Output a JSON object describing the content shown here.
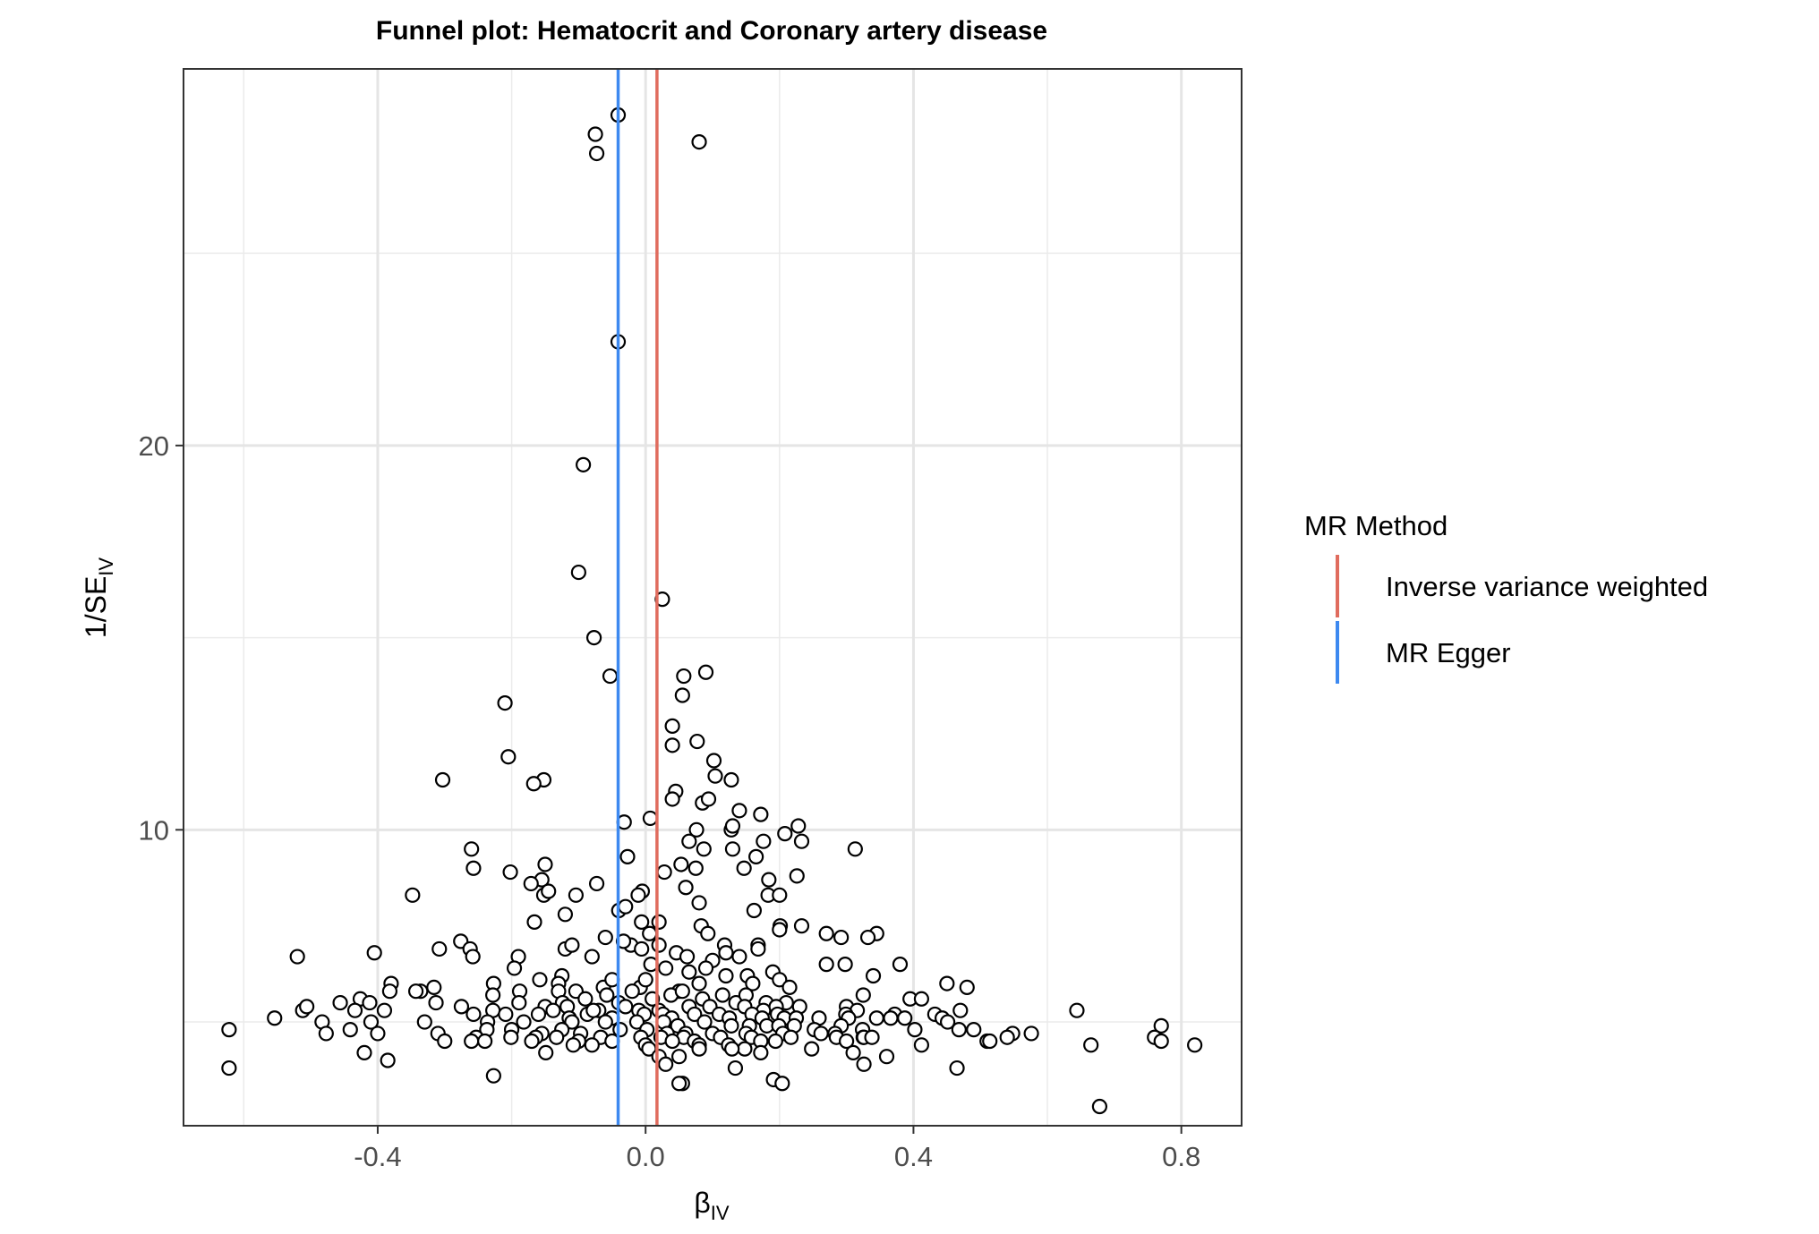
{
  "chart_data": {
    "type": "scatter",
    "title": "Funnel plot: Hematocrit and Coronary artery disease",
    "xlabel": "β",
    "xlabel_sub": "IV",
    "ylabel": "1/SE",
    "ylabel_sub": "IV",
    "xlim": [
      -0.69,
      0.89
    ],
    "ylim": [
      2.3,
      29.8
    ],
    "x_ticks": [
      -0.4,
      0.0,
      0.4,
      0.8
    ],
    "x_tick_labels": [
      "-0.4",
      "0.0",
      "0.4",
      "0.8"
    ],
    "y_ticks": [
      10,
      20
    ],
    "y_tick_labels": [
      "10",
      "20"
    ],
    "grid": true,
    "legend": {
      "title": "MR Method",
      "placement": "right",
      "entries": [
        {
          "label": "Inverse variance weighted",
          "color": "#E06C5E"
        },
        {
          "label": "MR Egger",
          "color": "#3D89F0"
        }
      ]
    },
    "vlines": [
      {
        "name": "Inverse variance weighted",
        "x": 0.017,
        "color": "#E06C5E"
      },
      {
        "name": "MR Egger",
        "x": -0.041,
        "color": "#3D89F0"
      }
    ],
    "points": [
      [
        -0.041,
        28.6
      ],
      [
        -0.075,
        28.1
      ],
      [
        -0.073,
        27.6
      ],
      [
        0.08,
        27.9
      ],
      [
        -0.041,
        22.7
      ],
      [
        -0.093,
        19.5
      ],
      [
        -0.1,
        16.7
      ],
      [
        0.025,
        16.0
      ],
      [
        -0.077,
        15.0
      ],
      [
        -0.053,
        14.0
      ],
      [
        0.057,
        14.0
      ],
      [
        0.09,
        14.1
      ],
      [
        0.055,
        13.5
      ],
      [
        -0.21,
        13.3
      ],
      [
        0.04,
        12.7
      ],
      [
        0.04,
        12.2
      ],
      [
        0.077,
        12.3
      ],
      [
        -0.205,
        11.9
      ],
      [
        0.102,
        11.8
      ],
      [
        0.104,
        11.4
      ],
      [
        0.128,
        11.3
      ],
      [
        -0.303,
        11.3
      ],
      [
        -0.152,
        11.3
      ],
      [
        -0.167,
        11.2
      ],
      [
        0.045,
        11.0
      ],
      [
        0.04,
        10.8
      ],
      [
        0.085,
        10.7
      ],
      [
        0.094,
        10.8
      ],
      [
        0.14,
        10.5
      ],
      [
        0.172,
        10.4
      ],
      [
        0.007,
        10.3
      ],
      [
        -0.032,
        10.2
      ],
      [
        0.076,
        10.0
      ],
      [
        0.128,
        10.0
      ],
      [
        0.13,
        10.1
      ],
      [
        0.228,
        10.1
      ],
      [
        0.208,
        9.9
      ],
      [
        0.233,
        9.7
      ],
      [
        0.065,
        9.7
      ],
      [
        0.087,
        9.5
      ],
      [
        0.176,
        9.7
      ],
      [
        0.13,
        9.5
      ],
      [
        0.313,
        9.5
      ],
      [
        -0.26,
        9.5
      ],
      [
        -0.15,
        9.1
      ],
      [
        -0.257,
        9.0
      ],
      [
        -0.202,
        8.9
      ],
      [
        0.053,
        9.1
      ],
      [
        0.075,
        9.0
      ],
      [
        0.028,
        8.9
      ],
      [
        0.147,
        9.0
      ],
      [
        0.165,
        9.3
      ],
      [
        -0.027,
        9.3
      ],
      [
        -0.155,
        8.7
      ],
      [
        -0.171,
        8.6
      ],
      [
        -0.073,
        8.6
      ],
      [
        0.06,
        8.5
      ],
      [
        0.184,
        8.7
      ],
      [
        0.226,
        8.8
      ],
      [
        -0.152,
        8.3
      ],
      [
        -0.145,
        8.4
      ],
      [
        -0.348,
        8.3
      ],
      [
        -0.104,
        8.3
      ],
      [
        -0.005,
        8.4
      ],
      [
        -0.011,
        8.3
      ],
      [
        0.183,
        8.3
      ],
      [
        0.2,
        8.3
      ],
      [
        0.08,
        8.1
      ],
      [
        -0.04,
        7.9
      ],
      [
        -0.03,
        8.0
      ],
      [
        -0.12,
        7.8
      ],
      [
        0.162,
        7.9
      ],
      [
        0.02,
        7.6
      ],
      [
        0.083,
        7.5
      ],
      [
        0.201,
        7.5
      ],
      [
        0.233,
        7.5
      ],
      [
        -0.166,
        7.6
      ],
      [
        -0.006,
        7.6
      ],
      [
        0.27,
        7.3
      ],
      [
        0.345,
        7.3
      ],
      [
        0.292,
        7.2
      ],
      [
        0.332,
        7.2
      ],
      [
        0.006,
        7.3
      ],
      [
        0.093,
        7.3
      ],
      [
        0.2,
        7.4
      ],
      [
        0.118,
        7.0
      ],
      [
        0.168,
        7.0
      ],
      [
        0.12,
        6.8
      ],
      [
        -0.022,
        7.0
      ],
      [
        -0.06,
        7.2
      ],
      [
        -0.006,
        6.9
      ],
      [
        -0.276,
        7.1
      ],
      [
        -0.308,
        6.9
      ],
      [
        -0.262,
        6.9
      ],
      [
        -0.405,
        6.8
      ],
      [
        -0.52,
        6.7
      ],
      [
        -0.258,
        6.7
      ],
      [
        -0.12,
        6.9
      ],
      [
        -0.11,
        7.0
      ],
      [
        -0.08,
        6.7
      ],
      [
        -0.033,
        7.1
      ],
      [
        0.02,
        7.0
      ],
      [
        0.046,
        6.8
      ],
      [
        0.062,
        6.7
      ],
      [
        0.1,
        6.6
      ],
      [
        0.14,
        6.7
      ],
      [
        0.168,
        6.9
      ],
      [
        0.38,
        6.5
      ],
      [
        0.27,
        6.5
      ],
      [
        0.298,
        6.5
      ],
      [
        -0.19,
        6.7
      ],
      [
        -0.196,
        6.4
      ],
      [
        0.008,
        6.5
      ],
      [
        0.03,
        6.4
      ],
      [
        0.065,
        6.3
      ],
      [
        0.09,
        6.4
      ],
      [
        0.12,
        6.2
      ],
      [
        0.152,
        6.2
      ],
      [
        0.19,
        6.3
      ],
      [
        0.2,
        6.1
      ],
      [
        0.34,
        6.2
      ],
      [
        -0.38,
        6.0
      ],
      [
        -0.316,
        5.9
      ],
      [
        -0.227,
        6.0
      ],
      [
        -0.125,
        6.2
      ],
      [
        -0.13,
        6.0
      ],
      [
        -0.158,
        6.1
      ],
      [
        -0.104,
        5.8
      ],
      [
        -0.063,
        5.9
      ],
      [
        -0.05,
        6.1
      ],
      [
        -0.008,
        5.9
      ],
      [
        0.0,
        6.1
      ],
      [
        0.05,
        5.8
      ],
      [
        0.08,
        6.0
      ],
      [
        0.16,
        6.0
      ],
      [
        0.215,
        5.9
      ],
      [
        0.45,
        6.0
      ],
      [
        0.48,
        5.9
      ],
      [
        -0.382,
        5.8
      ],
      [
        -0.336,
        5.8
      ],
      [
        -0.343,
        5.8
      ],
      [
        -0.228,
        5.7
      ],
      [
        -0.188,
        5.8
      ],
      [
        -0.13,
        5.8
      ],
      [
        -0.09,
        5.6
      ],
      [
        -0.058,
        5.7
      ],
      [
        -0.02,
        5.8
      ],
      [
        0.01,
        5.6
      ],
      [
        0.038,
        5.7
      ],
      [
        0.055,
        5.8
      ],
      [
        0.085,
        5.6
      ],
      [
        0.115,
        5.7
      ],
      [
        0.135,
        5.5
      ],
      [
        0.15,
        5.7
      ],
      [
        0.18,
        5.5
      ],
      [
        0.21,
        5.5
      ],
      [
        0.325,
        5.7
      ],
      [
        0.395,
        5.6
      ],
      [
        0.412,
        5.6
      ],
      [
        -0.456,
        5.5
      ],
      [
        -0.426,
        5.6
      ],
      [
        -0.412,
        5.5
      ],
      [
        -0.313,
        5.5
      ],
      [
        -0.189,
        5.5
      ],
      [
        -0.15,
        5.4
      ],
      [
        -0.124,
        5.5
      ],
      [
        -0.117,
        5.4
      ],
      [
        -0.07,
        5.3
      ],
      [
        -0.04,
        5.5
      ],
      [
        -0.03,
        5.4
      ],
      [
        -0.01,
        5.3
      ],
      [
        0.02,
        5.3
      ],
      [
        0.065,
        5.4
      ],
      [
        0.096,
        5.4
      ],
      [
        0.148,
        5.4
      ],
      [
        0.176,
        5.3
      ],
      [
        0.195,
        5.4
      ],
      [
        0.23,
        5.4
      ],
      [
        0.3,
        5.4
      ],
      [
        0.316,
        5.3
      ],
      [
        0.372,
        5.2
      ],
      [
        0.432,
        5.2
      ],
      [
        0.47,
        5.3
      ],
      [
        0.644,
        5.3
      ],
      [
        -0.512,
        5.3
      ],
      [
        -0.506,
        5.4
      ],
      [
        -0.434,
        5.3
      ],
      [
        -0.39,
        5.3
      ],
      [
        -0.275,
        5.4
      ],
      [
        -0.257,
        5.2
      ],
      [
        -0.228,
        5.3
      ],
      [
        -0.209,
        5.2
      ],
      [
        -0.16,
        5.2
      ],
      [
        -0.138,
        5.3
      ],
      [
        -0.114,
        5.1
      ],
      [
        -0.087,
        5.2
      ],
      [
        -0.078,
        5.3
      ],
      [
        -0.05,
        5.1
      ],
      [
        -0.002,
        5.2
      ],
      [
        0.026,
        5.2
      ],
      [
        0.039,
        5.1
      ],
      [
        0.073,
        5.2
      ],
      [
        0.11,
        5.2
      ],
      [
        0.125,
        5.1
      ],
      [
        0.159,
        5.2
      ],
      [
        0.174,
        5.1
      ],
      [
        0.197,
        5.2
      ],
      [
        0.207,
        5.1
      ],
      [
        0.225,
        5.1
      ],
      [
        0.259,
        5.1
      ],
      [
        0.299,
        5.2
      ],
      [
        0.303,
        5.1
      ],
      [
        0.345,
        5.1
      ],
      [
        0.366,
        5.1
      ],
      [
        0.387,
        5.1
      ],
      [
        0.443,
        5.1
      ],
      [
        0.451,
        5.0
      ],
      [
        -0.554,
        5.1
      ],
      [
        -0.483,
        5.0
      ],
      [
        -0.41,
        5.0
      ],
      [
        -0.33,
        5.0
      ],
      [
        -0.236,
        5.0
      ],
      [
        -0.182,
        5.0
      ],
      [
        -0.11,
        5.0
      ],
      [
        -0.06,
        5.0
      ],
      [
        -0.013,
        5.0
      ],
      [
        0.027,
        5.0
      ],
      [
        0.048,
        4.9
      ],
      [
        0.088,
        5.0
      ],
      [
        0.128,
        4.9
      ],
      [
        0.155,
        4.9
      ],
      [
        0.181,
        4.9
      ],
      [
        0.199,
        4.9
      ],
      [
        0.222,
        4.9
      ],
      [
        0.252,
        4.8
      ],
      [
        0.292,
        4.9
      ],
      [
        0.324,
        4.8
      ],
      [
        0.402,
        4.8
      ],
      [
        0.468,
        4.8
      ],
      [
        0.49,
        4.8
      ],
      [
        0.77,
        4.9
      ],
      [
        -0.622,
        4.8
      ],
      [
        -0.441,
        4.8
      ],
      [
        -0.237,
        4.8
      ],
      [
        -0.2,
        4.8
      ],
      [
        -0.155,
        4.7
      ],
      [
        -0.125,
        4.8
      ],
      [
        -0.097,
        4.7
      ],
      [
        -0.038,
        4.8
      ],
      [
        0.002,
        4.8
      ],
      [
        0.032,
        4.7
      ],
      [
        0.06,
        4.7
      ],
      [
        0.1,
        4.7
      ],
      [
        0.15,
        4.7
      ],
      [
        0.205,
        4.7
      ],
      [
        0.262,
        4.7
      ],
      [
        0.283,
        4.7
      ],
      [
        0.325,
        4.6
      ],
      [
        0.548,
        4.7
      ],
      [
        0.576,
        4.7
      ],
      [
        -0.477,
        4.7
      ],
      [
        -0.4,
        4.7
      ],
      [
        -0.31,
        4.7
      ],
      [
        -0.253,
        4.6
      ],
      [
        -0.201,
        4.6
      ],
      [
        -0.164,
        4.6
      ],
      [
        -0.133,
        4.6
      ],
      [
        -0.1,
        4.5
      ],
      [
        -0.067,
        4.6
      ],
      [
        -0.007,
        4.6
      ],
      [
        0.023,
        4.6
      ],
      [
        0.057,
        4.6
      ],
      [
        0.073,
        4.5
      ],
      [
        0.112,
        4.6
      ],
      [
        0.158,
        4.6
      ],
      [
        0.172,
        4.5
      ],
      [
        0.217,
        4.6
      ],
      [
        0.285,
        4.6
      ],
      [
        0.3,
        4.5
      ],
      [
        0.326,
        4.6
      ],
      [
        0.338,
        4.6
      ],
      [
        0.51,
        4.5
      ],
      [
        0.54,
        4.6
      ],
      [
        0.76,
        4.6
      ],
      [
        -0.3,
        4.5
      ],
      [
        -0.26,
        4.5
      ],
      [
        -0.24,
        4.5
      ],
      [
        -0.17,
        4.5
      ],
      [
        -0.108,
        4.4
      ],
      [
        -0.08,
        4.4
      ],
      [
        -0.05,
        4.5
      ],
      [
        0.0,
        4.4
      ],
      [
        0.04,
        4.5
      ],
      [
        0.08,
        4.4
      ],
      [
        0.124,
        4.4
      ],
      [
        0.148,
        4.3
      ],
      [
        0.194,
        4.5
      ],
      [
        0.248,
        4.3
      ],
      [
        0.412,
        4.4
      ],
      [
        0.514,
        4.5
      ],
      [
        0.77,
        4.5
      ],
      [
        0.665,
        4.4
      ],
      [
        0.82,
        4.4
      ],
      [
        -0.42,
        4.2
      ],
      [
        -0.149,
        4.2
      ],
      [
        0.05,
        4.1
      ],
      [
        0.005,
        4.3
      ],
      [
        0.08,
        4.3
      ],
      [
        0.129,
        4.3
      ],
      [
        0.31,
        4.2
      ],
      [
        0.36,
        4.1
      ],
      [
        0.02,
        4.1
      ],
      [
        0.172,
        4.2
      ],
      [
        -0.385,
        4.0
      ],
      [
        -0.622,
        3.8
      ],
      [
        0.03,
        3.9
      ],
      [
        0.134,
        3.8
      ],
      [
        0.326,
        3.9
      ],
      [
        0.465,
        3.8
      ],
      [
        -0.227,
        3.6
      ],
      [
        0.191,
        3.5
      ],
      [
        0.204,
        3.4
      ],
      [
        0.055,
        3.4
      ],
      [
        0.05,
        3.4
      ],
      [
        0.678,
        2.8
      ]
    ]
  }
}
